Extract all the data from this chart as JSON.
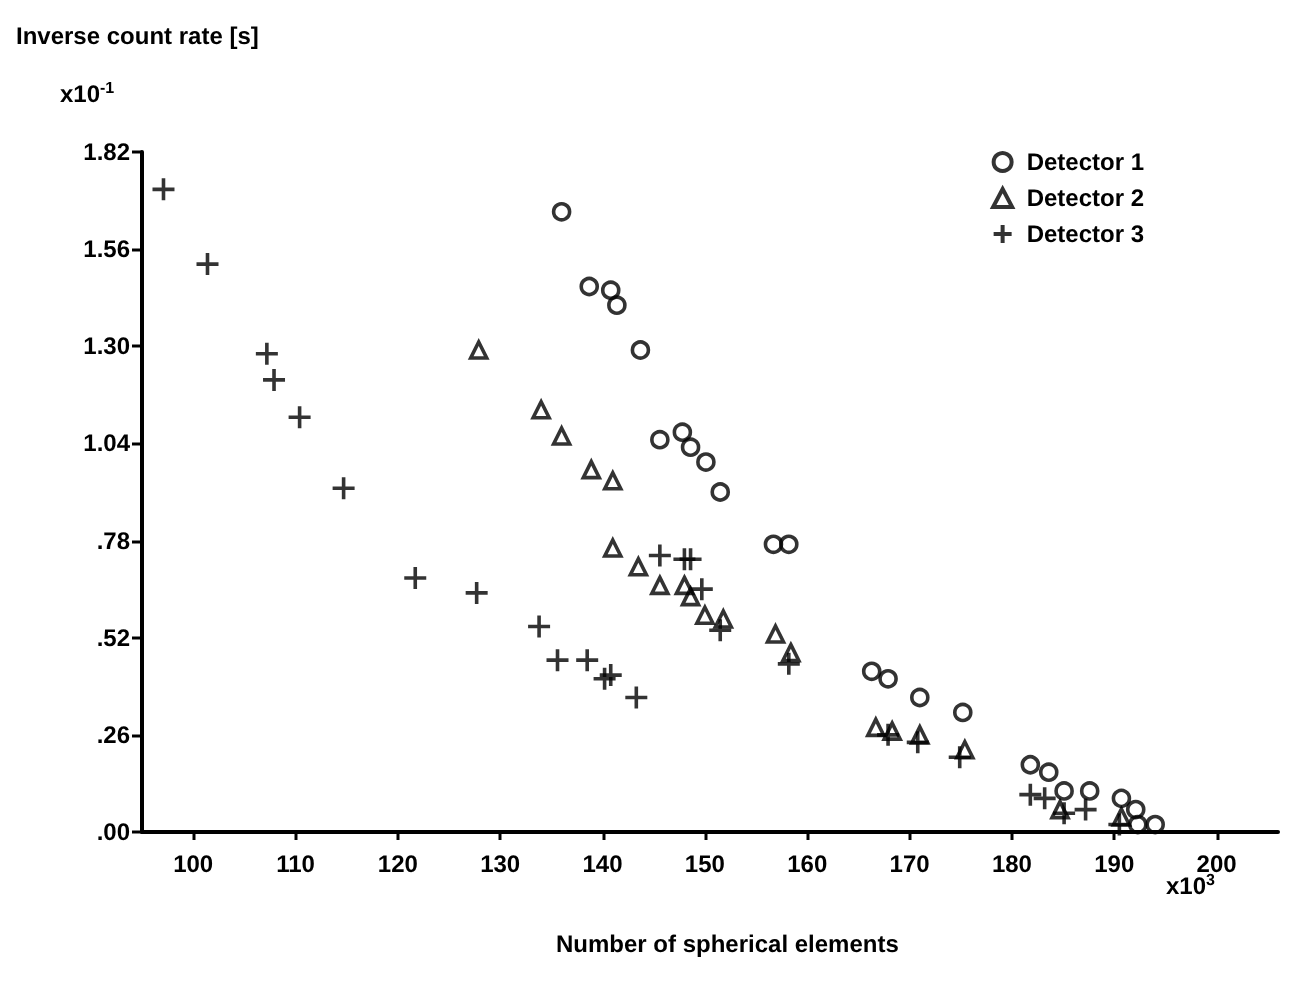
{
  "chart_data": {
    "type": "scatter",
    "ylabel": "Inverse count rate [s]",
    "xlabel": "Number of spherical elements",
    "annotations": [
      "x10$^{-1}$",
      "x10$^{3}$"
    ],
    "xlim": [
      95,
      206
    ],
    "xticks": [
      100,
      110,
      120,
      130,
      140,
      150,
      160,
      170,
      180,
      190,
      200
    ],
    "ylim": [
      0,
      1.82
    ],
    "yticks": [
      {
        "value": 0,
        "label": ".00"
      },
      {
        "value": 0.26,
        "label": ".26"
      },
      {
        "value": 0.52,
        "label": ".52"
      },
      {
        "value": 0.78,
        "label": ".78"
      },
      {
        "value": 1.04,
        "label": "1.04"
      },
      {
        "value": 1.3,
        "label": "1.30"
      },
      {
        "value": 1.56,
        "label": "1.56"
      },
      {
        "value": 1.82,
        "label": "1.82"
      }
    ],
    "grid": false,
    "legend": "top right",
    "series": [
      {
        "name": "Detector 1",
        "color": "#000000",
        "marker": "circle",
        "x": [
          136,
          138.7,
          140.8,
          141.4,
          143.7,
          145.6,
          147.8,
          148.6,
          150.1,
          151.5,
          156.7,
          158.2,
          166.3,
          167.9,
          171,
          175.2,
          181.8,
          183.6,
          185.1,
          187.6,
          190.7,
          192.1,
          192.3,
          194
        ],
        "values": [
          1.66,
          1.46,
          1.45,
          1.41,
          1.29,
          1.05,
          1.07,
          1.03,
          0.99,
          0.91,
          0.77,
          0.77,
          0.43,
          0.41,
          0.36,
          0.32,
          0.18,
          0.16,
          0.11,
          0.11,
          0.09,
          0.06,
          0.02,
          0.02
        ]
      },
      {
        "name": "Detector 2",
        "color": "#000000",
        "marker": "triangle",
        "x": [
          127.9,
          134,
          136,
          138.9,
          141,
          141,
          143.5,
          145.6,
          148,
          148.6,
          150,
          151.8,
          156.9,
          158.4,
          166.7,
          168.3,
          171,
          175.4,
          184.7,
          190.7
        ],
        "values": [
          1.29,
          1.13,
          1.06,
          0.97,
          0.94,
          0.76,
          0.71,
          0.66,
          0.66,
          0.63,
          0.58,
          0.57,
          0.53,
          0.48,
          0.28,
          0.27,
          0.26,
          0.22,
          0.06,
          0.04
        ]
      },
      {
        "name": "Detector 3",
        "color": "#000000",
        "marker": "cross",
        "x": [
          97.1,
          101.4,
          107.2,
          107.9,
          110.4,
          114.7,
          121.7,
          127.7,
          133.8,
          135.6,
          138.5,
          140.2,
          140.8,
          143.3,
          145.6,
          148,
          148.6,
          149.7,
          151.5,
          158.2,
          167.9,
          170.8,
          174.9,
          181.8,
          183.2,
          185.1,
          187.2,
          190.5
        ],
        "values": [
          1.72,
          1.52,
          1.28,
          1.21,
          1.11,
          0.92,
          0.68,
          0.64,
          0.55,
          0.46,
          0.46,
          0.41,
          0.42,
          0.36,
          0.74,
          0.73,
          0.73,
          0.65,
          0.54,
          0.45,
          0.26,
          0.24,
          0.2,
          0.1,
          0.09,
          0.05,
          0.06,
          0.02
        ]
      }
    ]
  }
}
